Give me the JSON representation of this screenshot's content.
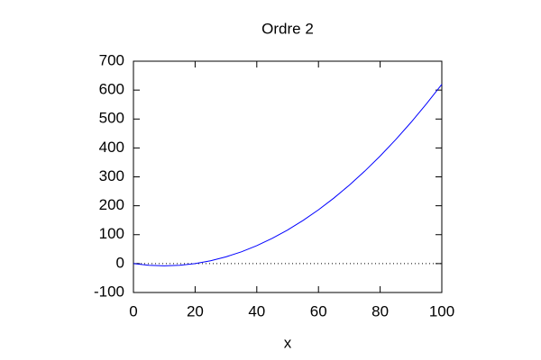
{
  "chart_data": {
    "type": "line",
    "title": "Ordre 2",
    "x_label": "x",
    "x": [
      0,
      5,
      10,
      15,
      20,
      25,
      30,
      35,
      40,
      45,
      50,
      55,
      60,
      65,
      70,
      75,
      80,
      85,
      90,
      95,
      100
    ],
    "values": [
      0,
      -5.8,
      -7.8,
      -5.8,
      0,
      9.7,
      23.3,
      40.7,
      62,
      87.2,
      116.3,
      149.2,
      186,
      226.7,
      271.3,
      319.7,
      372,
      428.2,
      488.3,
      552.2,
      620
    ],
    "color": "#0000ff",
    "xlim": [
      0,
      100
    ],
    "xticks": [
      0,
      20,
      40,
      60,
      80,
      100
    ],
    "ylim": [
      -100,
      700
    ],
    "yticks": [
      -100,
      0,
      100,
      200,
      300,
      400,
      500,
      600,
      700
    ],
    "zero_axis": true,
    "grid": false
  }
}
